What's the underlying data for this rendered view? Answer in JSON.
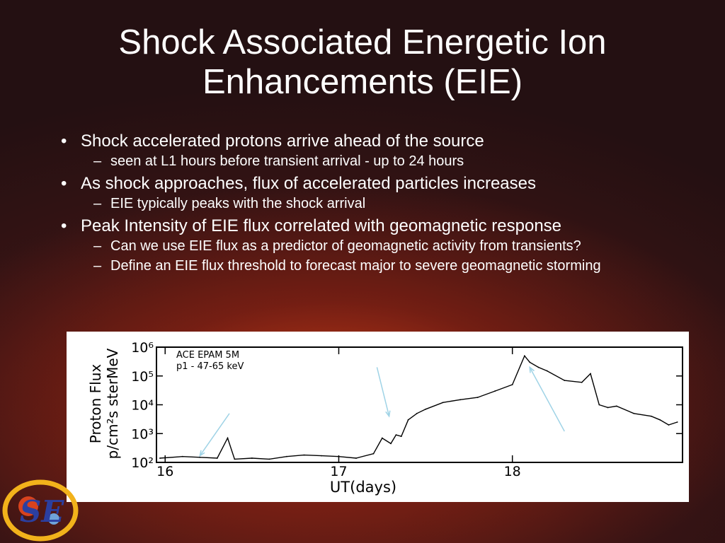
{
  "slide": {
    "title_line1": "Shock Associated Energetic Ion",
    "title_line2": "Enhancements (EIE)",
    "bullets": [
      {
        "text": "Shock accelerated protons arrive ahead of the source",
        "subs": [
          "seen at L1 hours before transient arrival  - up to 24 hours"
        ]
      },
      {
        "text": "As shock approaches, flux of accelerated particles increases",
        "subs": [
          "EIE typically peaks with the shock arrival"
        ]
      },
      {
        "text": "Peak Intensity of EIE flux correlated with geomagnetic response",
        "subs": [
          "Can we use EIE flux as a predictor of geomagnetic activity from transients?",
          "Define an EIE flux threshold to forecast major to severe geomagnetic storming"
        ]
      }
    ]
  },
  "colors": {
    "accent_arrow": "#9fd3e6",
    "logo_ring": "#f2b21b",
    "logo_letters": "#2b3fa0"
  },
  "chart_data": {
    "type": "line",
    "annotation_line1": "ACE EPAM 5M",
    "annotation_line2": "p1 - 47-65 keV",
    "ylabel_line1": "Proton Flux",
    "ylabel_line2": "p/cm²s sterMeV",
    "xlabel": "UT(days)",
    "x_ticks": [
      "16",
      "17",
      "18"
    ],
    "y_ticks": [
      "10²",
      "10³",
      "10⁴",
      "10⁵",
      "10⁶"
    ],
    "xlim": [
      15.95,
      18.98
    ],
    "ylog": true,
    "ylim": [
      100,
      1000000
    ],
    "grid": false,
    "x": [
      15.97,
      16.1,
      16.2,
      16.3,
      16.36,
      16.4,
      16.5,
      16.6,
      16.7,
      16.8,
      16.9,
      17.0,
      17.1,
      17.2,
      17.25,
      17.3,
      17.33,
      17.36,
      17.4,
      17.45,
      17.5,
      17.6,
      17.7,
      17.8,
      17.9,
      18.0,
      18.07,
      18.1,
      18.15,
      18.2,
      18.3,
      18.4,
      18.45,
      18.5,
      18.55,
      18.6,
      18.7,
      18.8,
      18.85,
      18.9,
      18.95
    ],
    "y": [
      140,
      160,
      150,
      140,
      700,
      130,
      140,
      130,
      160,
      180,
      170,
      160,
      140,
      200,
      700,
      450,
      900,
      800,
      3000,
      5000,
      7000,
      12000,
      15000,
      18000,
      30000,
      50000,
      500000,
      300000,
      200000,
      150000,
      70000,
      60000,
      120000,
      10000,
      8000,
      9000,
      5000,
      4000,
      3000,
      2000,
      2500
    ],
    "arrows": [
      {
        "from": [
          16.37,
          5000
        ],
        "to": [
          16.2,
          170
        ]
      },
      {
        "from": [
          17.22,
          200000
        ],
        "to": [
          17.29,
          4000
        ]
      },
      {
        "from": [
          18.3,
          1200
        ],
        "to": [
          18.1,
          200000
        ]
      }
    ]
  }
}
